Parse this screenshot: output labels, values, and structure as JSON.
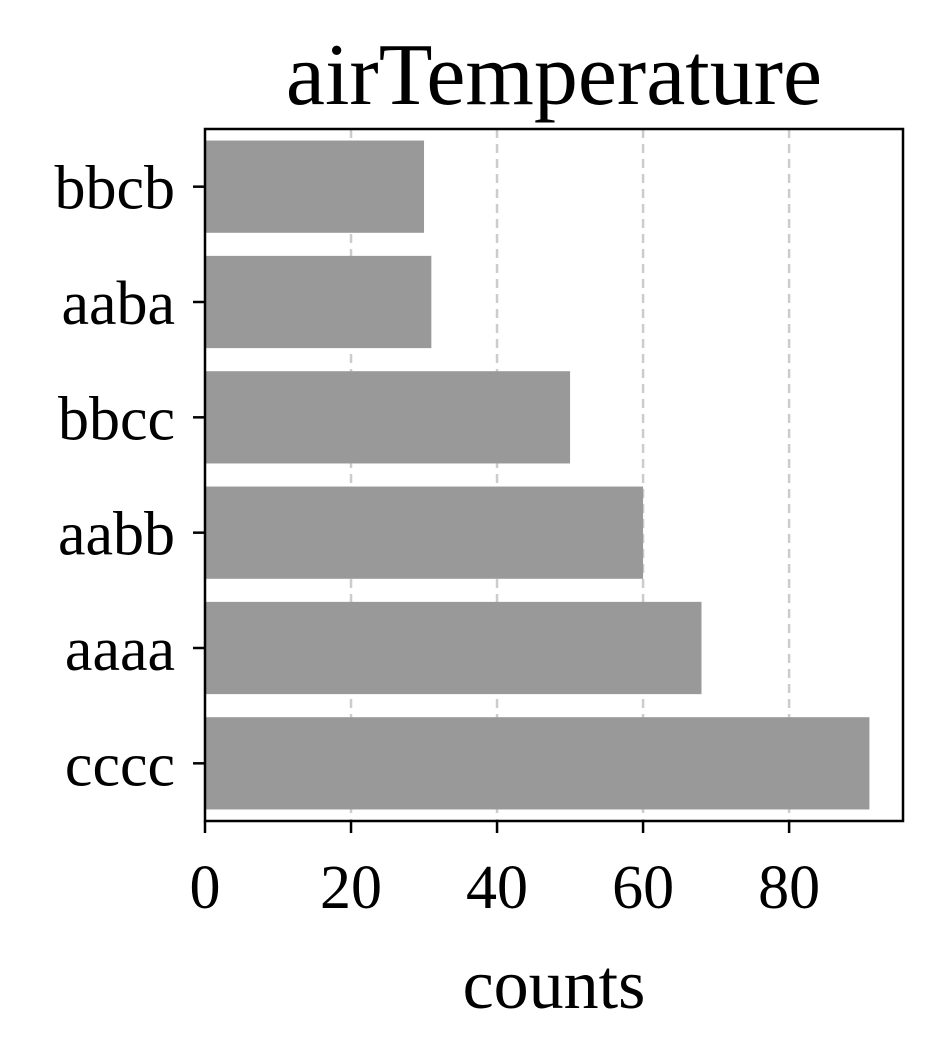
{
  "chart_data": {
    "type": "bar",
    "orientation": "horizontal",
    "title": "airTemperature",
    "xlabel": "counts",
    "ylabel": "",
    "categories": [
      "bbcb",
      "aaba",
      "bbcc",
      "aabb",
      "aaaa",
      "cccc"
    ],
    "values": [
      30,
      31,
      50,
      60,
      68,
      91
    ],
    "xlim": [
      0,
      95.6
    ],
    "xticks": [
      "0",
      "20",
      "40",
      "60",
      "80"
    ],
    "grid": "x-dashed",
    "bar_color": "#999999",
    "grid_color": "#cccccc"
  }
}
